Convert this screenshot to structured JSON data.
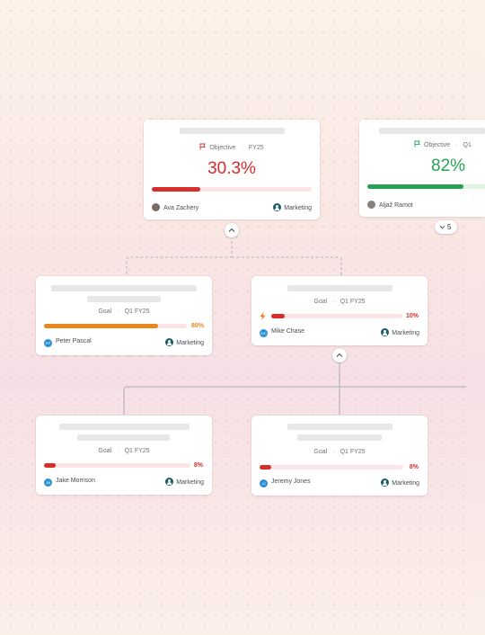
{
  "colors": {
    "red": "#d72d2d",
    "green": "#27a255",
    "orange": "#e8871c",
    "track": "#fbe4e6",
    "track_green": "#ddf3e4"
  },
  "objective_a": {
    "type_label": "Objective",
    "period": "FY25",
    "value_text": "30.3%",
    "progress": 0.303,
    "owner": "Ava Zachery",
    "team": "Marketing",
    "flag_icon": "flag-icon",
    "status": "red"
  },
  "objective_b": {
    "type_label": "Objective",
    "period": "Q1",
    "value_text": "82%",
    "progress": 0.82,
    "owner": "Aljaž Ramot",
    "flag_icon": "flag-icon",
    "status": "green",
    "children_count": "5"
  },
  "goal_peter": {
    "type_label": "Goal",
    "period": "Q1 FY25",
    "pct_text": "80%",
    "progress": 0.8,
    "owner": "Peter Pascal",
    "owner_initials": "PP",
    "team": "Marketing",
    "status": "orange"
  },
  "goal_mike": {
    "type_label": "Goal",
    "period": "Q1 FY25",
    "pct_text": "10%",
    "progress": 0.1,
    "owner": "Mike Chase",
    "owner_initials": "MC",
    "team": "Marketing",
    "status": "red",
    "status_icon": "lightning-icon"
  },
  "goal_jake": {
    "type_label": "Goal",
    "period": "Q1 FY25",
    "pct_text": "8%",
    "progress": 0.08,
    "owner": "Jake Morrison",
    "owner_initials": "JM",
    "team": "Marketing",
    "status": "red"
  },
  "goal_jeremy": {
    "type_label": "Goal",
    "period": "Q1 FY25",
    "pct_text": "8%",
    "progress": 0.08,
    "owner": "Jeremy Jones",
    "owner_initials": "JJ",
    "team": "Marketing",
    "status": "red"
  }
}
